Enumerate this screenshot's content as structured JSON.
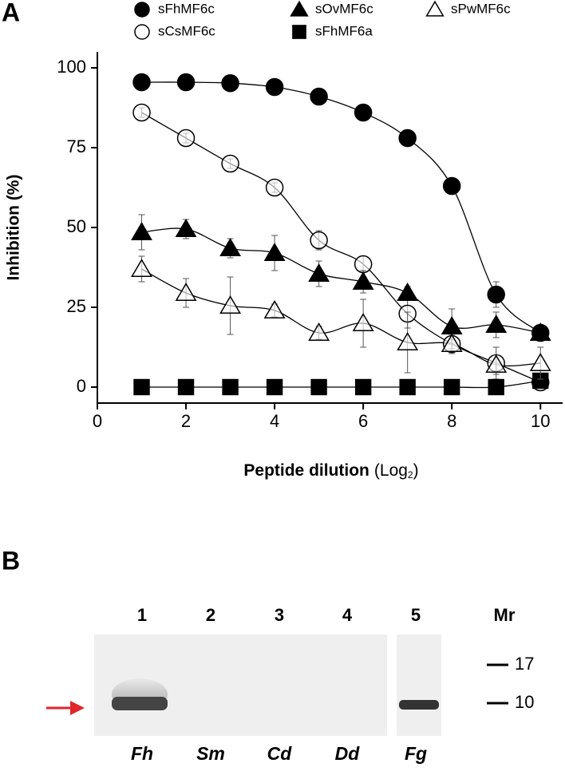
{
  "panel_a": {
    "label": "A"
  },
  "chart_data": {
    "type": "line",
    "ylabel": "Inhibition (%)",
    "xlabel": {
      "text": "Peptide dilution",
      "unit": "(Log",
      "sub": "2",
      "close": ")"
    },
    "x": [
      1,
      2,
      3,
      4,
      5,
      6,
      7,
      8,
      9,
      10
    ],
    "xlim": [
      0,
      10.5
    ],
    "xticks": [
      0,
      2,
      4,
      6,
      8,
      10
    ],
    "ylim": [
      -5,
      105
    ],
    "yticks": [
      0,
      25,
      50,
      75,
      100
    ],
    "legend": "top",
    "series": [
      {
        "name": "sFhMF6c",
        "color": "#000000",
        "marker": "circle",
        "filled": true,
        "values": [
          95.5,
          95.5,
          95.2,
          94,
          91,
          86,
          78,
          63,
          29,
          17
        ],
        "errors": [
          1,
          1,
          1,
          1,
          1,
          1,
          1,
          1,
          4,
          2
        ]
      },
      {
        "name": "sCsMF6c",
        "color": "#000000",
        "marker": "circle",
        "filled": false,
        "values": [
          86,
          78,
          70,
          62.5,
          46,
          38.5,
          23,
          13.5,
          7.5,
          1.5
        ],
        "errors": [
          1.5,
          1.5,
          1.5,
          1.5,
          3,
          2.5,
          4.5,
          3,
          5,
          1
        ]
      },
      {
        "name": "sOvMF6c",
        "color": "#000000",
        "marker": "triangle",
        "filled": true,
        "values": [
          48.5,
          49.5,
          43.5,
          42,
          35.5,
          33,
          29.5,
          19,
          19.5,
          17
        ],
        "errors": [
          5.5,
          3,
          3,
          5.5,
          4,
          3.5,
          2,
          5.5,
          4,
          1
        ]
      },
      {
        "name": "sFhMF6a",
        "color": "#000000",
        "marker": "square",
        "filled": true,
        "values": [
          0,
          0,
          0,
          0,
          0,
          0,
          0,
          0,
          0,
          2
        ],
        "errors": [
          0,
          0,
          0,
          0,
          0,
          0,
          0,
          0,
          0,
          0
        ]
      },
      {
        "name": "sPwMF6c",
        "color": "#000000",
        "marker": "triangle",
        "filled": false,
        "values": [
          37,
          29.5,
          25.5,
          24,
          17,
          20,
          14,
          13.5,
          7,
          7.5
        ],
        "errors": [
          4,
          4.5,
          9,
          2,
          2,
          7.5,
          9.5,
          1.5,
          3,
          5
        ]
      }
    ]
  },
  "panel_b": {
    "label": "B",
    "mr_label": "Mr",
    "markers": [
      17,
      10
    ],
    "lanes": [
      {
        "number": 1,
        "species": "Fh"
      },
      {
        "number": 2,
        "species": "Sm"
      },
      {
        "number": 3,
        "species": "Cd"
      },
      {
        "number": 4,
        "species": "Dd"
      },
      {
        "number": 5,
        "species": "Fg"
      }
    ]
  }
}
